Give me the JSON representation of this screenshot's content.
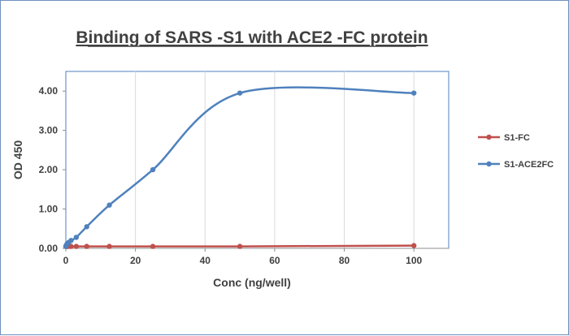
{
  "chart_data": {
    "type": "scatter",
    "title": "Binding of SARS -S1 with ACE2 -FC protein",
    "xlabel": "Conc (ng/well)",
    "ylabel": "OD 450",
    "xlim": [
      0,
      110
    ],
    "ylim": [
      0,
      4.5
    ],
    "x_ticks": [
      "0",
      "20",
      "40",
      "60",
      "80",
      "100"
    ],
    "y_ticks": [
      "0.00",
      "1.00",
      "2.00",
      "3.00",
      "4.00"
    ],
    "grid": "vertical gridlines at every 20 units",
    "legend_placement": "right",
    "series": [
      {
        "name": "S1-FC",
        "color": "#c0504d",
        "smooth": false,
        "x": [
          0,
          0.1,
          0.2,
          0.4,
          0.8,
          1.5,
          3,
          6,
          12.5,
          25,
          50,
          100
        ],
        "y": [
          0.05,
          0.05,
          0.05,
          0.05,
          0.05,
          0.05,
          0.05,
          0.05,
          0.05,
          0.05,
          0.05,
          0.07
        ]
      },
      {
        "name": "S1-ACE2FC",
        "color": "#4f81bd",
        "smooth": true,
        "x": [
          0,
          0.1,
          0.2,
          0.4,
          0.8,
          1.5,
          3,
          6,
          12.5,
          25,
          50,
          100
        ],
        "y": [
          0.05,
          0.07,
          0.09,
          0.12,
          0.15,
          0.2,
          0.28,
          0.55,
          1.1,
          2.0,
          3.95,
          3.95
        ]
      }
    ]
  }
}
